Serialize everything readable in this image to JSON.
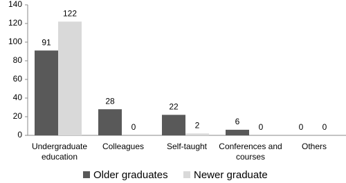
{
  "chart_data": {
    "type": "bar",
    "categories": [
      "Undergraduate education",
      "Colleagues",
      "Self-taught",
      "Conferences and courses",
      "Others"
    ],
    "series": [
      {
        "name": "Older graduates",
        "color": "#595959",
        "values": [
          91,
          28,
          22,
          6,
          0
        ]
      },
      {
        "name": "Newer graduate",
        "color": "#d9d9d9",
        "values": [
          122,
          0,
          2,
          0,
          0
        ]
      }
    ],
    "ylim": [
      0,
      140
    ],
    "yticks": [
      0,
      20,
      40,
      60,
      80,
      100,
      120,
      140
    ],
    "grid": false,
    "legend": "bottom"
  }
}
